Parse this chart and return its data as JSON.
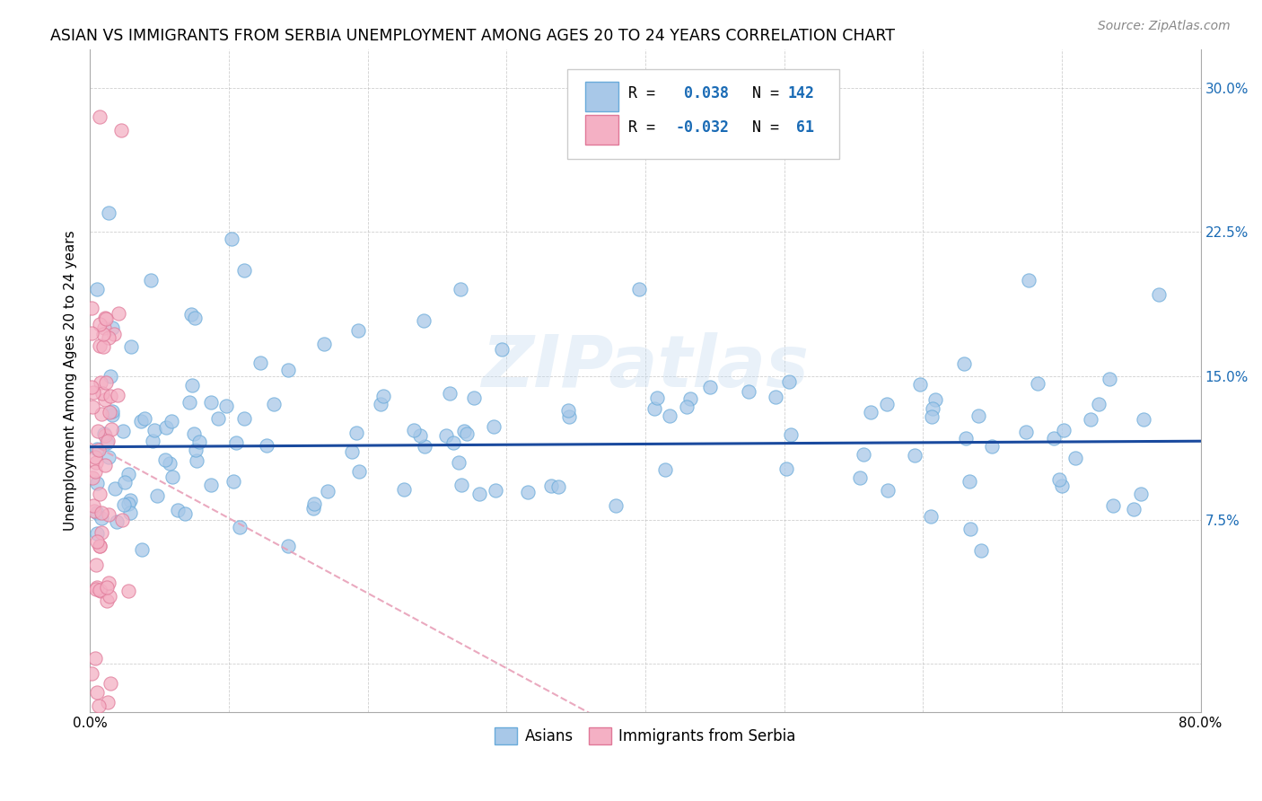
{
  "title": "ASIAN VS IMMIGRANTS FROM SERBIA UNEMPLOYMENT AMONG AGES 20 TO 24 YEARS CORRELATION CHART",
  "source": "Source: ZipAtlas.com",
  "ylabel": "Unemployment Among Ages 20 to 24 years",
  "xlim": [
    0.0,
    0.8
  ],
  "ylim": [
    -0.025,
    0.32
  ],
  "xtick_positions": [
    0.0,
    0.1,
    0.2,
    0.3,
    0.4,
    0.5,
    0.6,
    0.7,
    0.8
  ],
  "xticklabels": [
    "0.0%",
    "",
    "",
    "",
    "",
    "",
    "",
    "",
    "80.0%"
  ],
  "ytick_positions": [
    0.0,
    0.075,
    0.15,
    0.225,
    0.3
  ],
  "yticklabels": [
    "",
    "7.5%",
    "15.0%",
    "22.5%",
    "30.0%"
  ],
  "legend_r_asian": "0.038",
  "legend_n_asian": "142",
  "legend_r_serbia": "-0.032",
  "legend_n_serbia": "61",
  "color_asian": "#a8c8e8",
  "color_asian_edge": "#6aabda",
  "color_serbia": "#f4b0c4",
  "color_serbia_edge": "#e07898",
  "color_asian_line": "#1a4a9e",
  "color_serbia_line": "#e8a0b8",
  "watermark": "ZIPatlas",
  "scatter_size": 120
}
